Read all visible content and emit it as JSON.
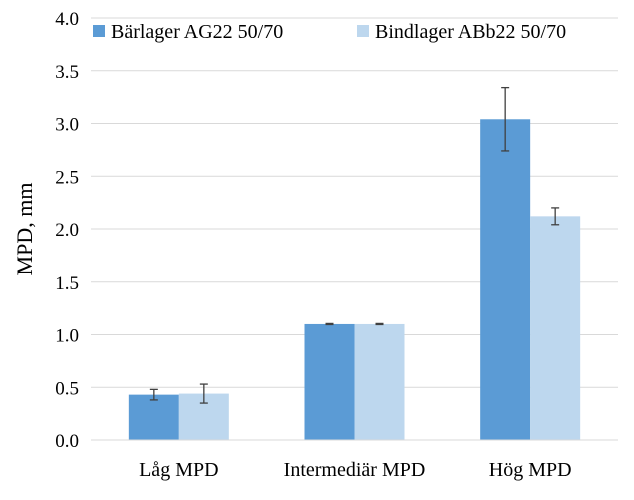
{
  "chart_data": {
    "type": "bar",
    "title": "",
    "xlabel": "",
    "ylabel": "MPD, mm",
    "ylim": [
      0,
      4.0
    ],
    "yticks": [
      "0.0",
      "0.5",
      "1.0",
      "1.5",
      "2.0",
      "2.5",
      "3.0",
      "3.5",
      "4.0"
    ],
    "grid": true,
    "legend": "top",
    "categories": [
      "Låg MPD",
      "Intermediär MPD",
      "Hög MPD"
    ],
    "series": [
      {
        "name": "Bärlager AG22 50/70",
        "color": "#5b9bd5",
        "values": [
          0.43,
          1.1,
          3.04
        ],
        "errors": [
          0.05,
          0.005,
          0.3
        ]
      },
      {
        "name": "Bindlager ABb22 50/70",
        "color": "#bdd7ee",
        "values": [
          0.44,
          1.1,
          2.12
        ],
        "errors": [
          0.09,
          0.005,
          0.08
        ]
      }
    ]
  }
}
